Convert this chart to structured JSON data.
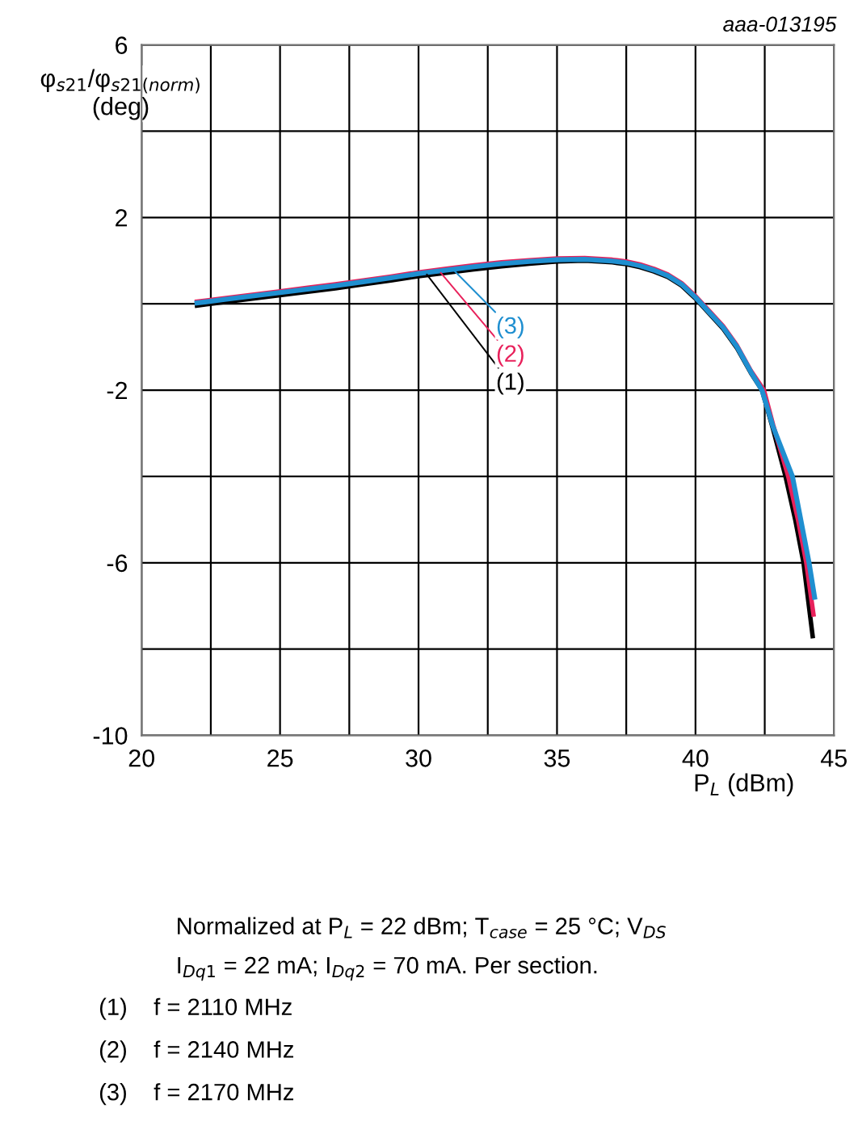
{
  "chart_data": {
    "type": "line",
    "ylabel": "φ$_{s21}$/φ$_{s21(norm)}$\n(deg)",
    "xlabel": "P$_{L}$ (dBm)",
    "xlim": [
      20,
      45
    ],
    "ylim": [
      -10,
      6
    ],
    "xticks": [
      20,
      {
        "value": 22.5,
        "label": null
      },
      25,
      {
        "value": 27.5,
        "label": null
      },
      30,
      {
        "value": 32.5,
        "label": null
      },
      35,
      {
        "value": 37.5,
        "label": null
      },
      40,
      {
        "value": 42.5,
        "label": null
      },
      45
    ],
    "yticks": [
      -10,
      {
        "value": -8,
        "label": null
      },
      -6,
      {
        "value": -4,
        "label": null
      },
      -2,
      {
        "value": 0,
        "label": null
      },
      2,
      {
        "value": 4,
        "label": null
      },
      6
    ],
    "grid": true,
    "marker": "none",
    "line_style": "solid",
    "series": [
      {
        "name": "(1)",
        "color": "#000000",
        "x": [
          22,
          23,
          24,
          25,
          26,
          27,
          28,
          29,
          30,
          31,
          32,
          33,
          34,
          35,
          36,
          37,
          37.5,
          38,
          38.5,
          39,
          39.5,
          40,
          40.5,
          41,
          41.5,
          42,
          42.4,
          42.8,
          43.25,
          43.6,
          43.9,
          44.23
        ],
        "values": [
          -0.04,
          0.04,
          0.12,
          0.2,
          0.28,
          0.36,
          0.45,
          0.54,
          0.64,
          0.72,
          0.8,
          0.87,
          0.93,
          0.98,
          1.0,
          0.96,
          0.92,
          0.85,
          0.75,
          0.62,
          0.42,
          0.12,
          -0.23,
          -0.58,
          -1.03,
          -1.6,
          -2.0,
          -2.9,
          -4.0,
          -5.0,
          -6.0,
          -7.7
        ]
      },
      {
        "name": "(2)",
        "color": "#e8215b",
        "x": [
          22,
          23,
          24,
          25,
          26,
          27,
          28,
          29,
          30,
          31,
          32,
          33,
          34,
          35,
          36,
          37,
          37.5,
          38,
          38.5,
          39,
          39.5,
          40,
          40.5,
          41,
          41.5,
          42,
          42.47,
          42.8,
          43.35,
          43.7,
          44.0,
          44.26
        ],
        "values": [
          0.05,
          0.13,
          0.21,
          0.29,
          0.37,
          0.45,
          0.54,
          0.63,
          0.73,
          0.81,
          0.89,
          0.96,
          1.01,
          1.05,
          1.06,
          1.02,
          0.98,
          0.91,
          0.81,
          0.68,
          0.48,
          0.18,
          -0.17,
          -0.52,
          -0.97,
          -1.55,
          -2.0,
          -2.8,
          -4.0,
          -5.0,
          -6.0,
          -7.2
        ]
      },
      {
        "name": "(3)",
        "color": "#1f8fd0",
        "x": [
          22,
          23,
          24,
          25,
          26,
          27,
          28,
          29,
          30,
          31,
          32,
          33,
          34,
          35,
          36,
          37,
          37.5,
          38,
          38.5,
          39,
          39.5,
          40,
          40.5,
          41,
          41.5,
          42,
          42.4,
          42.8,
          43.5,
          43.8,
          44.1,
          44.3
        ],
        "values": [
          0.02,
          0.1,
          0.18,
          0.26,
          0.34,
          0.42,
          0.51,
          0.6,
          0.7,
          0.78,
          0.86,
          0.93,
          0.98,
          1.02,
          1.03,
          0.99,
          0.95,
          0.88,
          0.78,
          0.65,
          0.45,
          0.15,
          -0.2,
          -0.55,
          -1.0,
          -1.58,
          -2.0,
          -2.85,
          -4.0,
          -5.0,
          -6.0,
          -6.8
        ]
      }
    ],
    "annotations": [
      "aaa-013195",
      "Normalized at P$_{L}$ = 22 dBm; T$_{case}$ = 25 °C; V$_{DS}$",
      "I$_{Dq1}$ = 22 mA; I$_{Dq2}$ = 70 mA. Per section.",
      "(1)    f = 2110 MHz",
      "(2)    f = 2140 MHz",
      "(3)    f = 2170 MHz"
    ]
  }
}
